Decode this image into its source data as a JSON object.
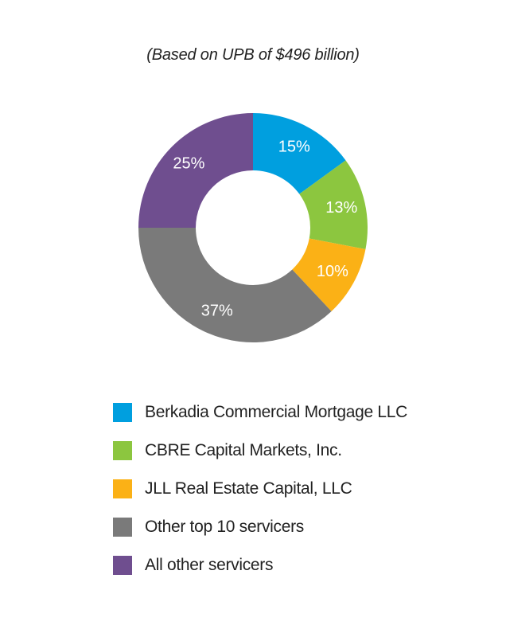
{
  "chart_data": {
    "type": "pie",
    "donut": true,
    "title": "",
    "subtitle": "(Based on UPB of $496 billion)",
    "series": [
      {
        "name": "Berkadia Commercial Mortgage LLC",
        "value": 15,
        "label": "15%",
        "color": "#009fdf"
      },
      {
        "name": "CBRE Capital Markets, Inc.",
        "value": 13,
        "label": "13%",
        "color": "#8cc63f"
      },
      {
        "name": "JLL Real Estate Capital, LLC",
        "value": 10,
        "label": "10%",
        "color": "#fbb116"
      },
      {
        "name": "Other top 10 servicers",
        "value": 37,
        "label": "37%",
        "color": "#7a7a7a"
      },
      {
        "name": "All other servicers",
        "value": 25,
        "label": "25%",
        "color": "#6f4e8f"
      }
    ],
    "legend_position": "bottom"
  }
}
